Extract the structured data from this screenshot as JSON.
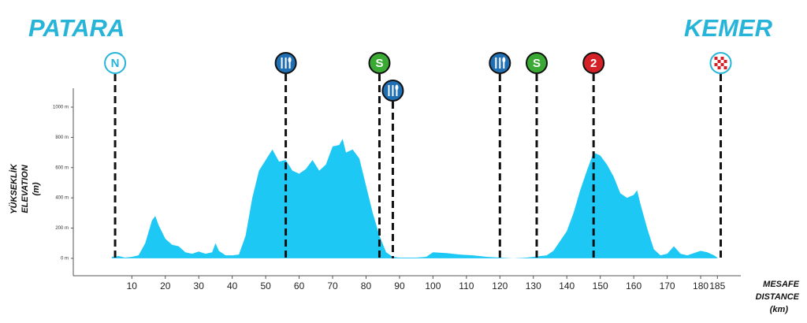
{
  "chart_data": {
    "type": "area",
    "start_title": "PATARA",
    "end_title": "KEMER",
    "y_label": [
      "YÜKSEKLİK",
      "ELEVATION",
      "(m)"
    ],
    "x_label": [
      "MESAFE",
      "DISTANCE",
      "(km)"
    ],
    "color": "#1ec8f5",
    "x": [
      4,
      6,
      8,
      10,
      12,
      14,
      16,
      17,
      18,
      20,
      22,
      24,
      26,
      28,
      30,
      32,
      34,
      35,
      36,
      38,
      40,
      42,
      44,
      46,
      48,
      50,
      52,
      54,
      56,
      58,
      60,
      62,
      64,
      66,
      68,
      70,
      72,
      73,
      74,
      76,
      78,
      80,
      82,
      84,
      86,
      88,
      90,
      95,
      98,
      100,
      104,
      108,
      112,
      116,
      120,
      124,
      128,
      130,
      134,
      136,
      140,
      142,
      144,
      146,
      148,
      150,
      152,
      154,
      156,
      158,
      160,
      161,
      162,
      164,
      166,
      168,
      170,
      172,
      174,
      176,
      180,
      182,
      184,
      185
    ],
    "values": [
      10,
      15,
      5,
      10,
      20,
      100,
      250,
      280,
      220,
      130,
      90,
      80,
      40,
      30,
      45,
      30,
      40,
      100,
      50,
      20,
      20,
      25,
      150,
      400,
      580,
      650,
      720,
      640,
      650,
      580,
      560,
      590,
      650,
      580,
      620,
      740,
      750,
      790,
      700,
      720,
      660,
      480,
      300,
      150,
      40,
      10,
      5,
      5,
      10,
      40,
      35,
      25,
      20,
      10,
      5,
      0,
      5,
      10,
      20,
      50,
      180,
      300,
      450,
      580,
      700,
      680,
      620,
      540,
      430,
      400,
      420,
      450,
      360,
      200,
      60,
      20,
      30,
      80,
      30,
      20,
      50,
      40,
      20,
      5
    ],
    "xlim": [
      -7.5,
      192
    ],
    "ylim": [
      -115,
      1125
    ],
    "xticks": [
      10,
      20,
      30,
      40,
      50,
      60,
      70,
      80,
      90,
      100,
      110,
      120,
      130,
      140,
      150,
      160,
      170,
      180,
      185
    ],
    "yticks": [
      {
        "value": 0,
        "label": "0 m"
      },
      {
        "value": 200,
        "label": "200 m"
      },
      {
        "value": 400,
        "label": "400 m"
      },
      {
        "value": 600,
        "label": "600 m"
      },
      {
        "value": 800,
        "label": "800 m"
      },
      {
        "value": 1000,
        "label": "1000 m"
      }
    ],
    "markers": [
      {
        "x": 5,
        "kind": "start",
        "label": "N",
        "color": "#ffffff",
        "edge": "#27b4d9"
      },
      {
        "x": 56,
        "kind": "food",
        "color": "#1f6fb5",
        "edge": "#111111"
      },
      {
        "x": 84,
        "kind": "sprint",
        "label": "S",
        "color": "#3aaa35",
        "edge": "#111111"
      },
      {
        "x": 88,
        "kind": "food",
        "color": "#1f6fb5",
        "edge": "#111111"
      },
      {
        "x": 120,
        "kind": "food",
        "color": "#1f6fb5",
        "edge": "#111111"
      },
      {
        "x": 131,
        "kind": "sprint",
        "label": "S",
        "color": "#3aaa35",
        "edge": "#111111"
      },
      {
        "x": 148,
        "kind": "climb",
        "label": "2",
        "color": "#d42027",
        "edge": "#111111"
      },
      {
        "x": 186,
        "kind": "finish",
        "color": "#ffffff",
        "edge": "#27b4d9"
      }
    ]
  }
}
